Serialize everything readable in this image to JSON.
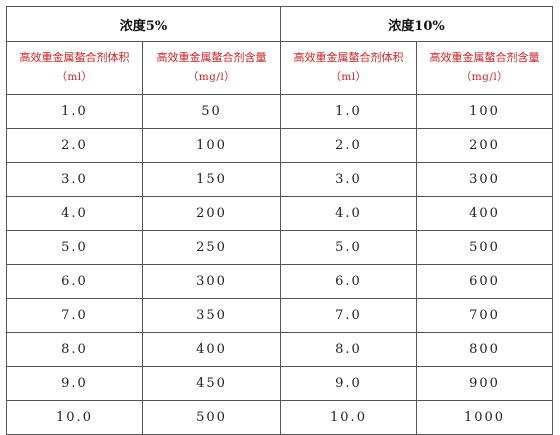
{
  "groups": [
    {
      "label": "浓度5%"
    },
    {
      "label": "浓度10%"
    }
  ],
  "column_headers": [
    {
      "name": "高效重金属螯合剂体积",
      "unit": "（ml）"
    },
    {
      "name": "高效重金属螯合剂含量",
      "unit": "（mg/l）"
    },
    {
      "name": "高效重金属螯合剂体积",
      "unit": "（ml）"
    },
    {
      "name": "高效重金属螯合剂含量",
      "unit": "（mg/l）"
    }
  ],
  "rows": [
    [
      "1.0",
      "50",
      "1.0",
      "100"
    ],
    [
      "2.0",
      "100",
      "2.0",
      "200"
    ],
    [
      "3.0",
      "150",
      "3.0",
      "300"
    ],
    [
      "4.0",
      "200",
      "4.0",
      "400"
    ],
    [
      "5.0",
      "250",
      "5.0",
      "500"
    ],
    [
      "6.0",
      "300",
      "6.0",
      "600"
    ],
    [
      "7.0",
      "350",
      "7.0",
      "700"
    ],
    [
      "8.0",
      "400",
      "8.0",
      "800"
    ],
    [
      "9.0",
      "450",
      "9.0",
      "900"
    ],
    [
      "10.0",
      "500",
      "10.0",
      "1000"
    ]
  ],
  "colors": {
    "header_text": "#d21f1f",
    "border": "#555555",
    "body_text": "#222222"
  }
}
